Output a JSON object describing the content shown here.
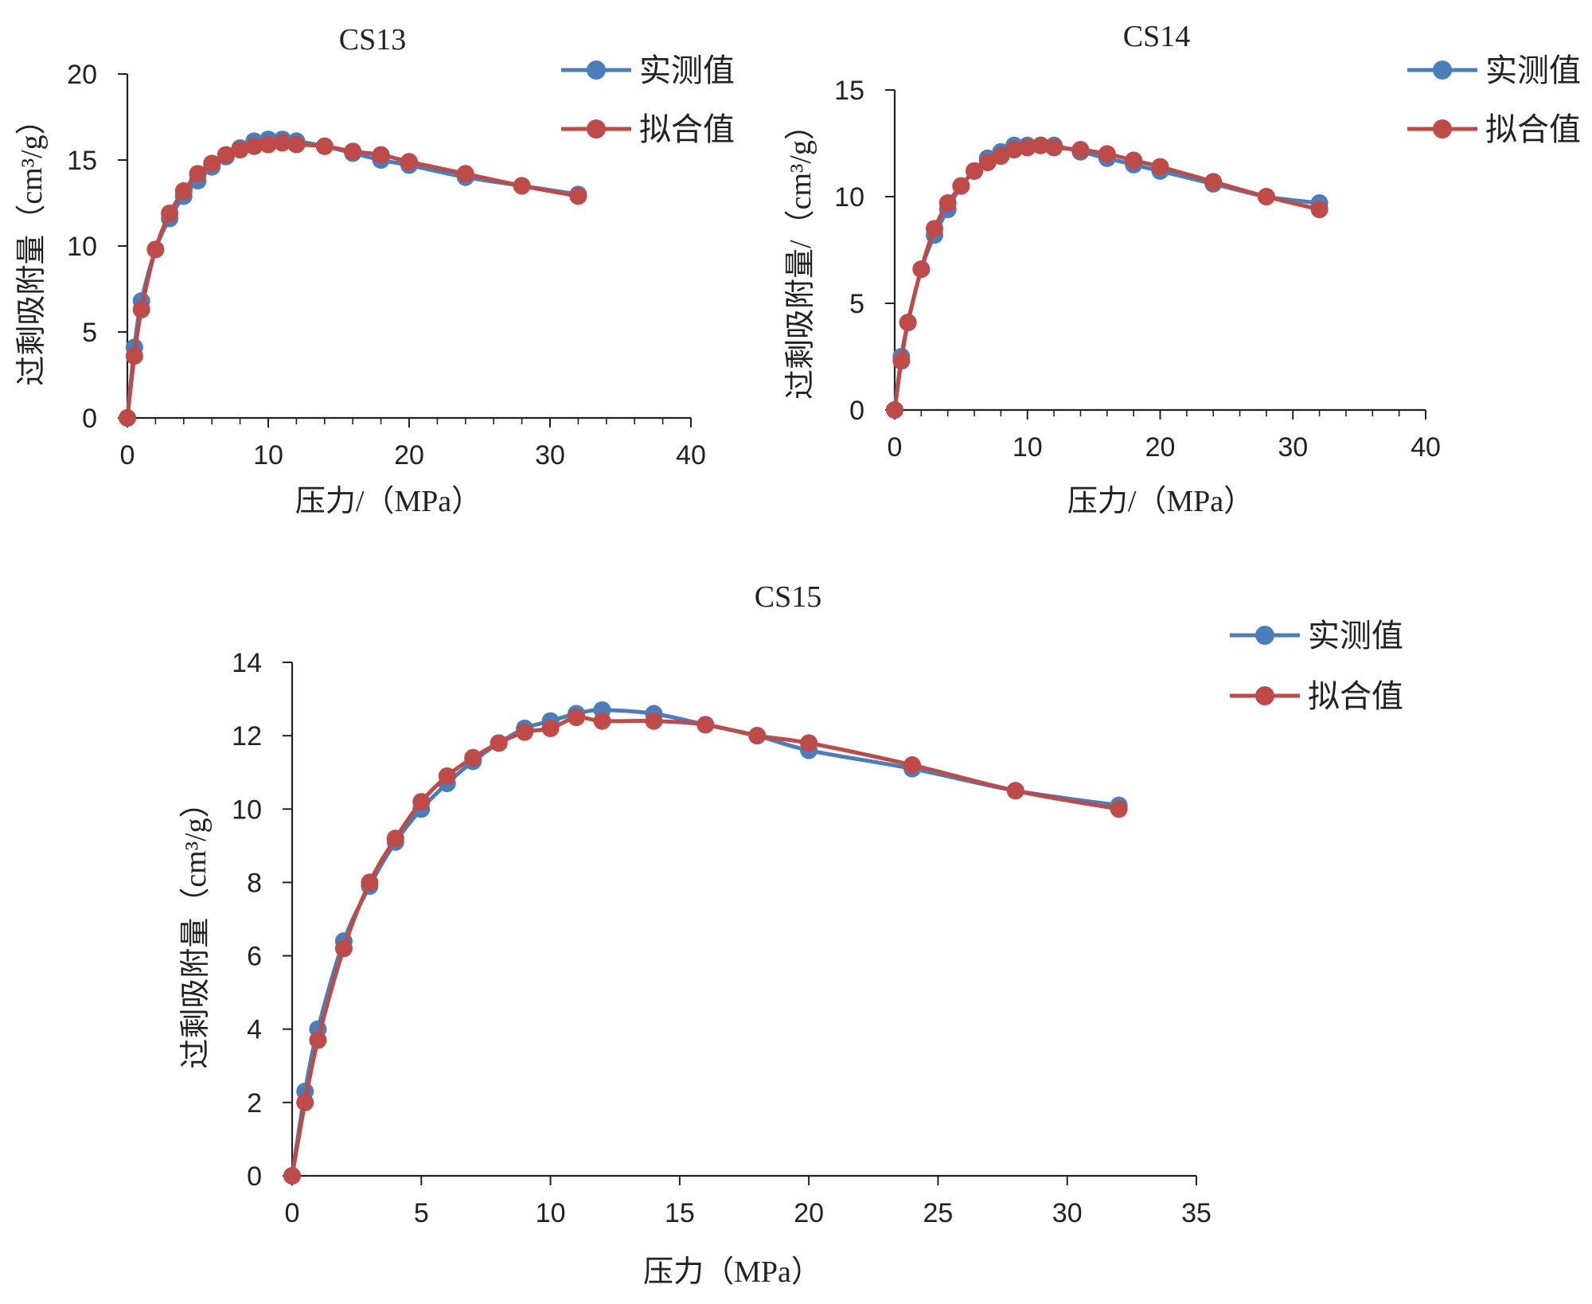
{
  "chart_data": [
    {
      "type": "line",
      "title": "CS13",
      "xlabel": "压力/（MPa）",
      "ylabel": "过剩吸附量（cm³/g）",
      "xlim": [
        0,
        40
      ],
      "ylim": [
        0,
        20
      ],
      "xticks": [
        0,
        10,
        20,
        30,
        40
      ],
      "yticks": [
        0,
        5,
        10,
        15,
        20
      ],
      "xtick_labels": [
        "0",
        "10",
        "20",
        "30",
        "40"
      ],
      "ytick_labels": [
        "0",
        "5",
        "10",
        "15",
        "20"
      ],
      "x_minor_step": 2,
      "legend": "top-right",
      "series": [
        {
          "name": "实测值",
          "color": "#4a7ebb",
          "x": [
            0,
            0.5,
            1,
            2,
            3,
            4,
            5,
            6,
            7,
            8,
            9,
            10,
            11,
            12,
            14,
            16,
            18,
            20,
            24,
            28,
            32
          ],
          "y": [
            0,
            4.1,
            6.8,
            9.8,
            11.6,
            12.9,
            13.8,
            14.6,
            15.2,
            15.7,
            16.1,
            16.2,
            16.2,
            16.1,
            15.8,
            15.4,
            15.0,
            14.7,
            14.0,
            13.5,
            13.0
          ]
        },
        {
          "name": "拟合值",
          "color": "#be4b48",
          "x": [
            0,
            0.5,
            1,
            2,
            3,
            4,
            5,
            6,
            7,
            8,
            9,
            10,
            11,
            12,
            14,
            16,
            18,
            20,
            24,
            28,
            32
          ],
          "y": [
            0,
            3.6,
            6.3,
            9.8,
            11.9,
            13.2,
            14.2,
            14.8,
            15.3,
            15.6,
            15.8,
            15.9,
            16.0,
            15.9,
            15.8,
            15.5,
            15.3,
            14.9,
            14.2,
            13.5,
            12.9
          ]
        }
      ]
    },
    {
      "type": "line",
      "title": "CS14",
      "xlabel": "压力/（MPa）",
      "ylabel": "过剩吸附量/（cm³/g）",
      "xlim": [
        0,
        40
      ],
      "ylim": [
        0,
        15
      ],
      "xticks": [
        0,
        10,
        20,
        30,
        40
      ],
      "yticks": [
        0,
        5,
        10,
        15
      ],
      "xtick_labels": [
        "0",
        "10",
        "20",
        "30",
        "40"
      ],
      "ytick_labels": [
        "0",
        "5",
        "10",
        "15"
      ],
      "x_minor_step": 2,
      "legend": "top-right",
      "series": [
        {
          "name": "实测值",
          "color": "#4a7ebb",
          "x": [
            0,
            0.5,
            1,
            2,
            3,
            4,
            5,
            6,
            7,
            8,
            9,
            10,
            11,
            12,
            14,
            16,
            18,
            20,
            24,
            28,
            32
          ],
          "y": [
            0,
            2.5,
            4.1,
            6.6,
            8.2,
            9.4,
            10.5,
            11.2,
            11.8,
            12.1,
            12.4,
            12.4,
            12.4,
            12.4,
            12.1,
            11.8,
            11.5,
            11.2,
            10.6,
            10.0,
            9.7
          ]
        },
        {
          "name": "拟合值",
          "color": "#be4b48",
          "x": [
            0,
            0.5,
            1,
            2,
            3,
            4,
            5,
            6,
            7,
            8,
            9,
            10,
            11,
            12,
            14,
            16,
            18,
            20,
            24,
            28,
            32
          ],
          "y": [
            0,
            2.3,
            4.1,
            6.6,
            8.5,
            9.7,
            10.5,
            11.2,
            11.6,
            11.9,
            12.2,
            12.3,
            12.4,
            12.3,
            12.2,
            12.0,
            11.7,
            11.4,
            10.7,
            10.0,
            9.4
          ]
        }
      ]
    },
    {
      "type": "line",
      "title": "CS15",
      "xlabel": "压力（MPa）",
      "ylabel": "过剩吸附量（cm³/g）",
      "xlim": [
        0,
        35
      ],
      "ylim": [
        0,
        14
      ],
      "xticks": [
        0,
        5,
        10,
        15,
        20,
        25,
        30,
        35
      ],
      "yticks": [
        0,
        2,
        4,
        6,
        8,
        10,
        12,
        14
      ],
      "xtick_labels": [
        "0",
        "5",
        "10",
        "15",
        "20",
        "25",
        "30",
        "35"
      ],
      "ytick_labels": [
        "0",
        "2",
        "4",
        "6",
        "8",
        "10",
        "12",
        "14"
      ],
      "x_minor_step": 0,
      "legend": "top-right",
      "series": [
        {
          "name": "实测值",
          "color": "#4a7ebb",
          "x": [
            0,
            0.5,
            1,
            2,
            3,
            4,
            5,
            6,
            7,
            8,
            9,
            10,
            11,
            12,
            14,
            16,
            18,
            20,
            24,
            28,
            32
          ],
          "y": [
            0,
            2.3,
            4.0,
            6.4,
            7.9,
            9.1,
            10.0,
            10.7,
            11.3,
            11.8,
            12.2,
            12.4,
            12.6,
            12.7,
            12.6,
            12.3,
            12.0,
            11.6,
            11.1,
            10.5,
            10.1
          ]
        },
        {
          "name": "拟合值",
          "color": "#be4b48",
          "x": [
            0,
            0.5,
            1,
            2,
            3,
            4,
            5,
            6,
            7,
            8,
            9,
            10,
            11,
            12,
            14,
            16,
            18,
            20,
            24,
            28,
            32
          ],
          "y": [
            0,
            2.0,
            3.7,
            6.2,
            8.0,
            9.2,
            10.2,
            10.9,
            11.4,
            11.8,
            12.1,
            12.2,
            12.5,
            12.4,
            12.4,
            12.3,
            12.0,
            11.8,
            11.2,
            10.5,
            10.0
          ]
        }
      ]
    }
  ]
}
